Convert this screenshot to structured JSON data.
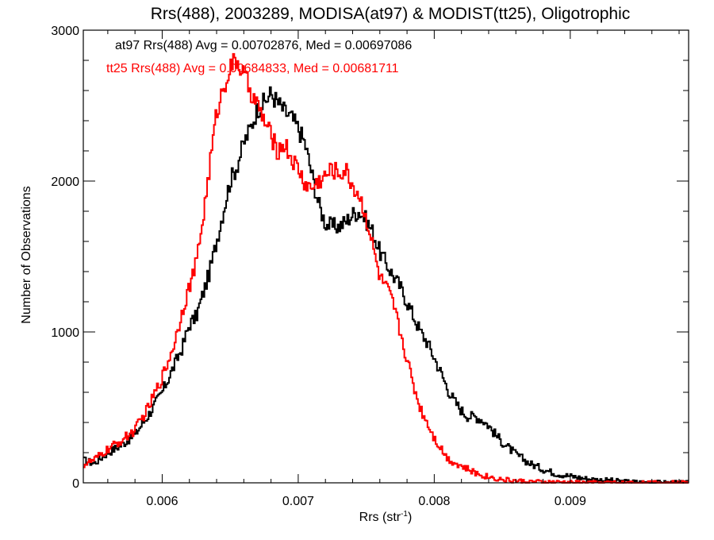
{
  "chart_data": {
    "type": "line",
    "title": "Rrs(488), 2003289, MODISA(at97) & MODIST(tt25), Oligotrophic",
    "xlabel": "Rrs (str",
    "xlabel_sup": "-1",
    "xlabel_close": ")",
    "ylabel": "Number of Observations",
    "xlim": [
      0.00542,
      0.00987
    ],
    "ylim": [
      0,
      3000
    ],
    "x_ticks": [
      0.006,
      0.007,
      0.008,
      0.009
    ],
    "x_tick_labels": [
      "0.006",
      "0.007",
      "0.008",
      "0.009"
    ],
    "y_ticks": [
      0,
      1000,
      2000,
      3000
    ],
    "y_tick_labels": [
      "0",
      "1000",
      "2000",
      "3000"
    ],
    "grid": false,
    "legend_position": "top-left",
    "series": [
      {
        "name": "at97",
        "legend_text": "at97 Rrs(488) Avg = 0.00702876, Med = 0.00697086",
        "color": "#000000",
        "points": [
          [
            0.00542,
            150
          ],
          [
            0.0055,
            130
          ],
          [
            0.0056,
            200
          ],
          [
            0.0057,
            250
          ],
          [
            0.0058,
            320
          ],
          [
            0.0059,
            450
          ],
          [
            0.006,
            600
          ],
          [
            0.00605,
            700
          ],
          [
            0.0061,
            800
          ],
          [
            0.00615,
            900
          ],
          [
            0.0062,
            1050
          ],
          [
            0.00625,
            1100
          ],
          [
            0.0063,
            1250
          ],
          [
            0.00635,
            1400
          ],
          [
            0.0064,
            1600
          ],
          [
            0.00645,
            1800
          ],
          [
            0.0065,
            2000
          ],
          [
            0.00655,
            2100
          ],
          [
            0.0066,
            2250
          ],
          [
            0.00665,
            2350
          ],
          [
            0.0067,
            2480
          ],
          [
            0.00675,
            2520
          ],
          [
            0.0068,
            2580
          ],
          [
            0.00685,
            2520
          ],
          [
            0.0069,
            2460
          ],
          [
            0.00695,
            2420
          ],
          [
            0.007,
            2350
          ],
          [
            0.00705,
            2250
          ],
          [
            0.0071,
            2050
          ],
          [
            0.00715,
            1850
          ],
          [
            0.0072,
            1720
          ],
          [
            0.00725,
            1700
          ],
          [
            0.0073,
            1700
          ],
          [
            0.00735,
            1730
          ],
          [
            0.0074,
            1780
          ],
          [
            0.00745,
            1800
          ],
          [
            0.0075,
            1740
          ],
          [
            0.00755,
            1660
          ],
          [
            0.0076,
            1530
          ],
          [
            0.00765,
            1450
          ],
          [
            0.0077,
            1370
          ],
          [
            0.00775,
            1300
          ],
          [
            0.0078,
            1200
          ],
          [
            0.00785,
            1100
          ],
          [
            0.0079,
            1000
          ],
          [
            0.00795,
            930
          ],
          [
            0.008,
            830
          ],
          [
            0.00805,
            730
          ],
          [
            0.0081,
            620
          ],
          [
            0.00815,
            540
          ],
          [
            0.0082,
            480
          ],
          [
            0.00825,
            440
          ],
          [
            0.0083,
            440
          ],
          [
            0.00835,
            420
          ],
          [
            0.0084,
            380
          ],
          [
            0.00845,
            320
          ],
          [
            0.0085,
            270
          ],
          [
            0.0086,
            190
          ],
          [
            0.0087,
            130
          ],
          [
            0.0088,
            90
          ],
          [
            0.0089,
            60
          ],
          [
            0.009,
            45
          ],
          [
            0.0091,
            30
          ],
          [
            0.0092,
            20
          ],
          [
            0.0093,
            15
          ],
          [
            0.0094,
            8
          ],
          [
            0.0095,
            5
          ],
          [
            0.0096,
            3
          ],
          [
            0.0097,
            2
          ],
          [
            0.00987,
            1
          ]
        ]
      },
      {
        "name": "tt25",
        "legend_text": "tt25 Rrs(488) Avg = 0.00684833, Med = 0.00681711",
        "color": "#ff0000",
        "points": [
          [
            0.00542,
            120
          ],
          [
            0.0055,
            150
          ],
          [
            0.0056,
            220
          ],
          [
            0.0057,
            280
          ],
          [
            0.0058,
            350
          ],
          [
            0.0059,
            500
          ],
          [
            0.006,
            700
          ],
          [
            0.00605,
            820
          ],
          [
            0.0061,
            960
          ],
          [
            0.00615,
            1150
          ],
          [
            0.0062,
            1300
          ],
          [
            0.00625,
            1450
          ],
          [
            0.0063,
            1750
          ],
          [
            0.00635,
            2100
          ],
          [
            0.0064,
            2450
          ],
          [
            0.00645,
            2620
          ],
          [
            0.0065,
            2750
          ],
          [
            0.00655,
            2800
          ],
          [
            0.0066,
            2700
          ],
          [
            0.00665,
            2600
          ],
          [
            0.0067,
            2500
          ],
          [
            0.00675,
            2400
          ],
          [
            0.0068,
            2300
          ],
          [
            0.00685,
            2200
          ],
          [
            0.0069,
            2250
          ],
          [
            0.00695,
            2150
          ],
          [
            0.007,
            2080
          ],
          [
            0.00705,
            1980
          ],
          [
            0.0071,
            1950
          ],
          [
            0.00715,
            2000
          ],
          [
            0.0072,
            2030
          ],
          [
            0.00725,
            2080
          ],
          [
            0.0073,
            2050
          ],
          [
            0.00735,
            2070
          ],
          [
            0.0074,
            1970
          ],
          [
            0.00745,
            1900
          ],
          [
            0.0075,
            1760
          ],
          [
            0.00755,
            1560
          ],
          [
            0.0076,
            1360
          ],
          [
            0.00765,
            1290
          ],
          [
            0.0077,
            1180
          ],
          [
            0.00775,
            1000
          ],
          [
            0.0078,
            820
          ],
          [
            0.00785,
            640
          ],
          [
            0.0079,
            490
          ],
          [
            0.00795,
            400
          ],
          [
            0.008,
            300
          ],
          [
            0.00805,
            230
          ],
          [
            0.0081,
            160
          ],
          [
            0.0082,
            110
          ],
          [
            0.0083,
            65
          ],
          [
            0.0084,
            40
          ],
          [
            0.0085,
            22
          ],
          [
            0.0086,
            12
          ],
          [
            0.0087,
            7
          ],
          [
            0.0088,
            4
          ],
          [
            0.0089,
            3
          ],
          [
            0.009,
            2
          ],
          [
            0.0092,
            1
          ],
          [
            0.0094,
            1
          ],
          [
            0.00987,
            0
          ]
        ]
      }
    ]
  }
}
